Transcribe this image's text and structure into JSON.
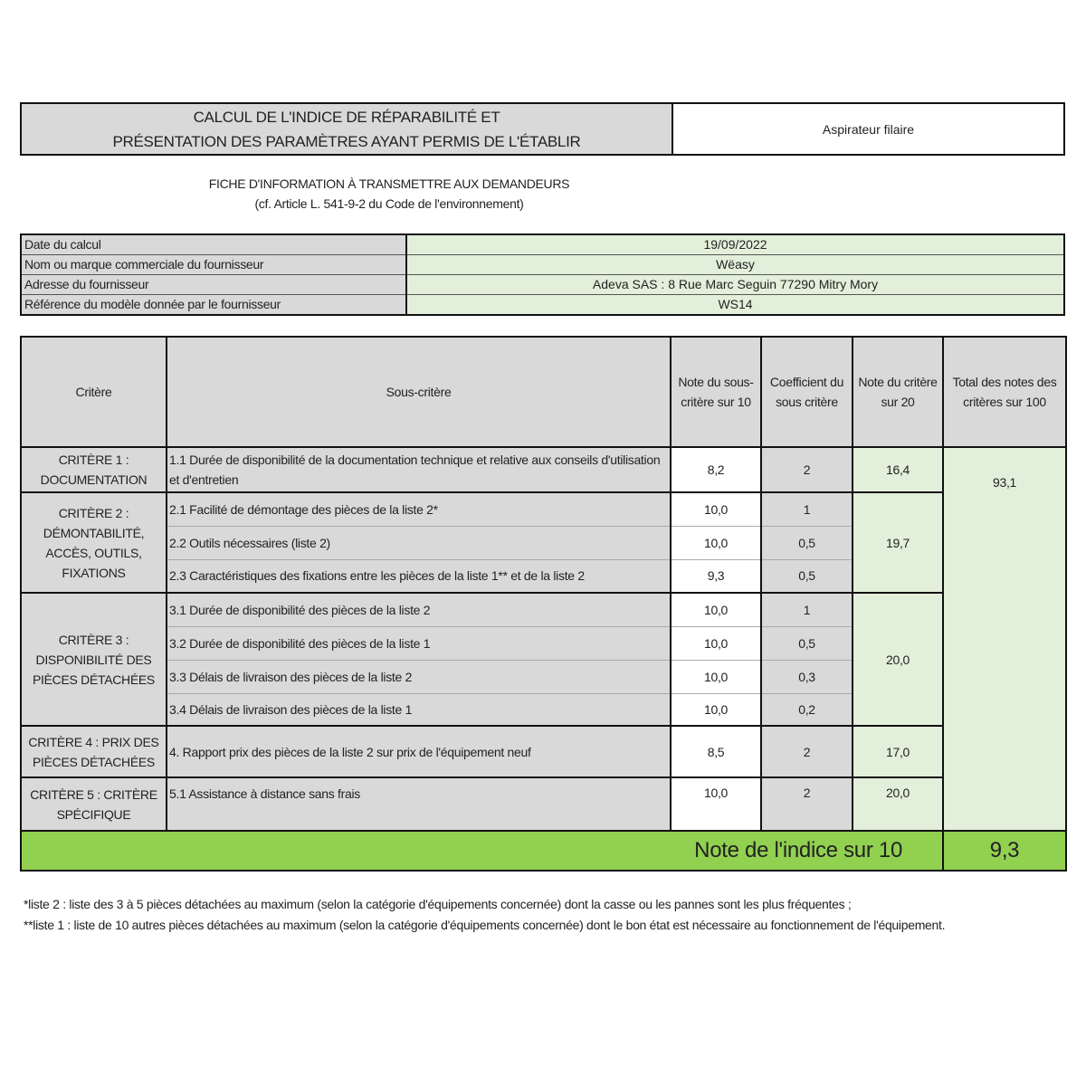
{
  "header": {
    "title_line1": "CALCUL DE L'INDICE DE RÉPARABILITÉ ET",
    "title_line2": "PRÉSENTATION DES PARAMÈTRES AYANT PERMIS DE L'ÉTABLIR",
    "product": "Aspirateur filaire"
  },
  "subtitle": {
    "line1": "FICHE D'INFORMATION À TRANSMETTRE AUX DEMANDEURS",
    "line2": "(cf. Article L. 541-9-2 du Code de l'environnement)"
  },
  "info": [
    {
      "label": "Date du calcul",
      "value": "19/09/2022"
    },
    {
      "label": "Nom ou marque commerciale du fournisseur",
      "value": "Wëasy"
    },
    {
      "label": "Adresse du fournisseur",
      "value": "Adeva SAS : 8 Rue Marc Seguin 77290 Mitry Mory"
    },
    {
      "label": "Référence du modèle donnée par le fournisseur",
      "value": "WS14"
    }
  ],
  "table": {
    "headers": {
      "critere": "Critère",
      "sous_critere": "Sous-critère",
      "note_sous": "Note du sous-critère sur 10",
      "coef": "Coefficient du sous critère",
      "note_crit": "Note du critère sur 20",
      "total": "Total des notes des critères sur 100"
    },
    "criteria": [
      {
        "name": "CRITÈRE 1 : DOCUMENTATION",
        "note": "16,4",
        "subs": [
          {
            "label": "1.1 Durée de disponibilité de la documentation technique et relative aux conseils d'utilisation et d'entretien",
            "note": "8,2",
            "coef": "2"
          }
        ]
      },
      {
        "name": "CRITÈRE 2 : DÉMONTABILITÉ, ACCÈS, OUTILS, FIXATIONS",
        "note": "19,7",
        "subs": [
          {
            "label": "2.1 Facilité de démontage des pièces de la liste 2*",
            "note": "10,0",
            "coef": "1"
          },
          {
            "label": "2.2 Outils nécessaires (liste 2)",
            "note": "10,0",
            "coef": "0,5"
          },
          {
            "label": "2.3 Caractéristiques des fixations entre les pièces de la liste 1** et de la liste 2",
            "note": "9,3",
            "coef": "0,5"
          }
        ]
      },
      {
        "name": "CRITÈRE 3 : DISPONIBILITÉ DES PIÈCES DÉTACHÉES",
        "note": "20,0",
        "subs": [
          {
            "label": "3.1 Durée de disponibilité des pièces de la liste 2",
            "note": "10,0",
            "coef": "1"
          },
          {
            "label": "3.2 Durée de disponibilité des pièces de la liste 1",
            "note": "10,0",
            "coef": "0,5"
          },
          {
            "label": "3.3 Délais de livraison des pièces de la liste 2",
            "note": "10,0",
            "coef": "0,3"
          },
          {
            "label": "3.4 Délais de livraison des pièces de la liste 1",
            "note": "10,0",
            "coef": "0,2"
          }
        ]
      },
      {
        "name": "CRITÈRE 4 : PRIX DES PIÈCES DÉTACHÉES",
        "note": "17,0",
        "subs": [
          {
            "label": "4. Rapport prix des pièces de la liste 2 sur prix de l'équipement neuf",
            "note": "8,5",
            "coef": "2"
          }
        ]
      },
      {
        "name": "CRITÈRE 5 : CRITÈRE SPÉCIFIQUE",
        "note": "20,0",
        "subs": [
          {
            "label": "5.1 Assistance à distance sans frais",
            "note": "10,0",
            "coef": "2"
          }
        ]
      }
    ],
    "total": "93,1",
    "index_label": "Note de l'indice sur 10",
    "index_value": "9,3"
  },
  "footnotes": [
    "*liste 2 : liste des 3 à 5 pièces détachées au maximum (selon la catégorie d'équipements concernée) dont la casse ou les pannes sont les plus fréquentes ;",
    "**liste 1 : liste de 10 autres pièces détachées au maximum (selon la catégorie d'équipements concernée) dont le bon état est nécessaire au fonctionnement de  l'équipement."
  ],
  "colors": {
    "gray": "#d9d9d9",
    "light_green": "#e2efda",
    "green": "#92d050"
  }
}
